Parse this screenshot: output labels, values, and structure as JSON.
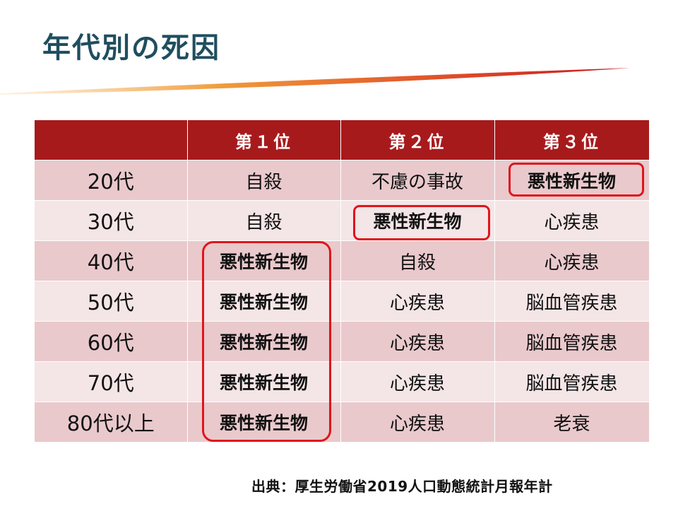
{
  "title": "年代別の死因",
  "table": {
    "header": [
      "",
      "第１位",
      "第２位",
      "第３位"
    ],
    "rows": [
      {
        "age": "20代",
        "c1": "自殺",
        "c2": "不慮の事故",
        "c3": "悪性新生物"
      },
      {
        "age": "30代",
        "c1": "自殺",
        "c2": "悪性新生物",
        "c3": "心疾患"
      },
      {
        "age": "40代",
        "c1": "悪性新生物",
        "c2": "自殺",
        "c3": "心疾患"
      },
      {
        "age": "50代",
        "c1": "悪性新生物",
        "c2": "心疾患",
        "c3": "脳血管疾患"
      },
      {
        "age": "60代",
        "c1": "悪性新生物",
        "c2": "心疾患",
        "c3": "脳血管疾患"
      },
      {
        "age": "70代",
        "c1": "悪性新生物",
        "c2": "心疾患",
        "c3": "脳血管疾患"
      },
      {
        "age": "80代以上",
        "c1": "悪性新生物",
        "c2": "心疾患",
        "c3": "老衰"
      }
    ]
  },
  "source": "出典：厚生労働省2019人口動態統計月報年計",
  "colors": {
    "header_bg": "#a71a1c",
    "row_odd": "#e9c9cc",
    "row_even": "#f4e5e6",
    "highlight_border": "#e0151b",
    "title": "#1f4e5f"
  }
}
